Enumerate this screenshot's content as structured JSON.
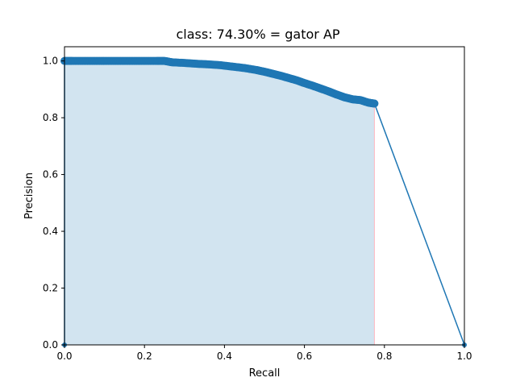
{
  "chart_data": {
    "type": "line",
    "title": "class: 74.30% = gator AP",
    "xlabel": "Recall",
    "ylabel": "Precision",
    "xlim": [
      0.0,
      1.0
    ],
    "ylim": [
      0.0,
      1.05
    ],
    "xticks": [
      "0.0",
      "0.2",
      "0.4",
      "0.6",
      "0.8",
      "1.0"
    ],
    "yticks": [
      "0.0",
      "0.2",
      "0.4",
      "0.6",
      "0.8",
      "1.0"
    ],
    "xtick_values": [
      0.0,
      0.2,
      0.4,
      0.6,
      0.8,
      1.0
    ],
    "ytick_values": [
      0.0,
      0.2,
      0.4,
      0.6,
      0.8,
      1.0
    ],
    "grid": false,
    "legend": "none",
    "series": [
      {
        "color": "#1f77b4",
        "marker": "circle",
        "x": [
          0.0,
          0.0,
          0.02,
          0.05,
          0.08,
          0.11,
          0.14,
          0.17,
          0.2,
          0.23,
          0.25,
          0.27,
          0.3,
          0.33,
          0.36,
          0.39,
          0.42,
          0.45,
          0.48,
          0.5,
          0.52,
          0.54,
          0.56,
          0.58,
          0.6,
          0.62,
          0.64,
          0.66,
          0.68,
          0.7,
          0.72,
          0.74,
          0.76,
          0.775,
          1.0
        ],
        "y": [
          0.0,
          1.0,
          1.0,
          1.0,
          1.0,
          1.0,
          1.0,
          1.0,
          1.0,
          1.0,
          1.0,
          0.995,
          0.993,
          0.99,
          0.988,
          0.985,
          0.98,
          0.975,
          0.968,
          0.962,
          0.955,
          0.948,
          0.94,
          0.932,
          0.922,
          0.913,
          0.903,
          0.893,
          0.882,
          0.872,
          0.865,
          0.862,
          0.853,
          0.85,
          0.0
        ]
      }
    ],
    "fill": {
      "color": "#1f77b4",
      "opacity": 0.2,
      "x": [
        0.0,
        0.02,
        0.05,
        0.08,
        0.11,
        0.14,
        0.17,
        0.2,
        0.23,
        0.25,
        0.27,
        0.3,
        0.33,
        0.36,
        0.39,
        0.42,
        0.45,
        0.48,
        0.5,
        0.52,
        0.54,
        0.56,
        0.58,
        0.6,
        0.62,
        0.64,
        0.66,
        0.68,
        0.7,
        0.72,
        0.74,
        0.76,
        0.775
      ],
      "y": [
        1.0,
        1.0,
        1.0,
        1.0,
        1.0,
        1.0,
        1.0,
        1.0,
        1.0,
        1.0,
        0.995,
        0.993,
        0.99,
        0.988,
        0.985,
        0.98,
        0.975,
        0.968,
        0.962,
        0.955,
        0.948,
        0.94,
        0.932,
        0.922,
        0.913,
        0.903,
        0.893,
        0.882,
        0.872,
        0.865,
        0.862,
        0.853,
        0.85
      ]
    },
    "fill_edge_color": "#ffb6c1"
  }
}
